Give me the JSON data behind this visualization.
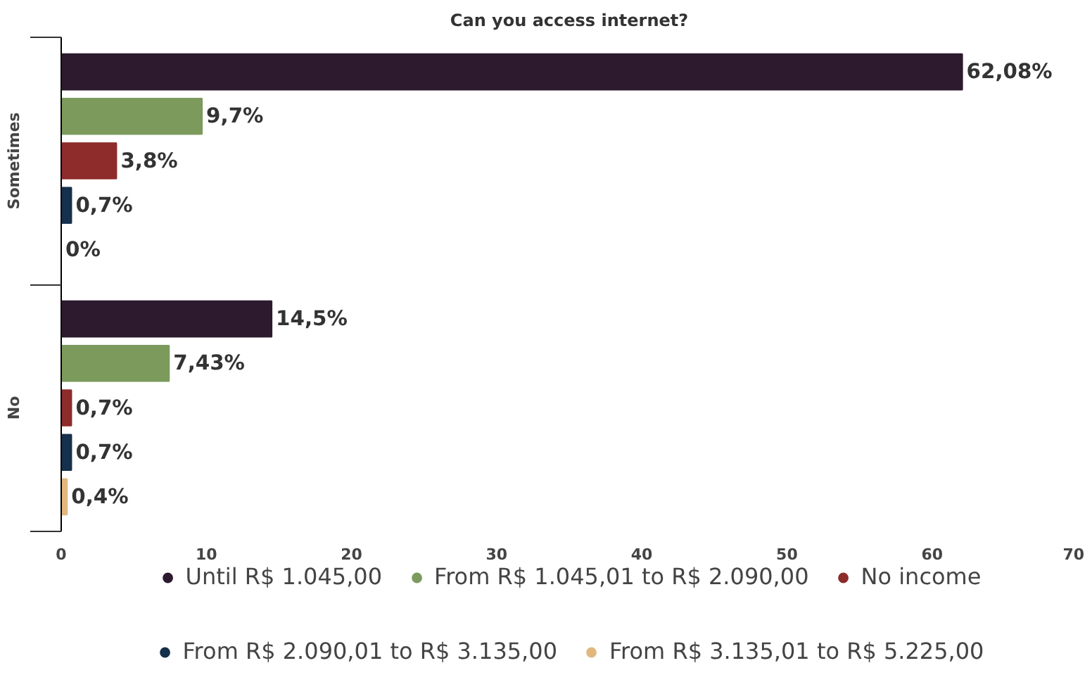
{
  "chart_data": {
    "type": "bar",
    "orientation": "horizontal",
    "title": "Can you access internet?",
    "categories": [
      "Sometimes",
      "No"
    ],
    "series": [
      {
        "name": "Until R$ 1.045,00",
        "color": "#2d1a2e",
        "values": [
          62.08,
          14.5
        ],
        "value_labels": [
          "62,08%",
          "14,5%"
        ]
      },
      {
        "name": "From R$ 1.045,01 to R$ 2.090,00",
        "color": "#7b9a5c",
        "values": [
          9.7,
          7.43
        ],
        "value_labels": [
          "9,7%",
          "7,43%"
        ]
      },
      {
        "name": "No income",
        "color": "#8e2b2b",
        "values": [
          3.8,
          0.7
        ],
        "value_labels": [
          "3,8%",
          "0,7%"
        ]
      },
      {
        "name": "From R$ 2.090,01 to R$ 3.135,00",
        "color": "#15304d",
        "values": [
          0.7,
          0.7
        ],
        "value_labels": [
          "0,7%",
          "0,7%"
        ]
      },
      {
        "name": "From R$ 3.135,01 to R$ 5.225,00",
        "color": "#e2b77f",
        "values": [
          0,
          0.4
        ],
        "value_labels": [
          "0%",
          "0,4%"
        ]
      }
    ],
    "xlim": [
      0,
      70
    ],
    "xticks": [
      0,
      10,
      20,
      30,
      40,
      50,
      60,
      70
    ],
    "grid": false,
    "legend": "bottom"
  }
}
